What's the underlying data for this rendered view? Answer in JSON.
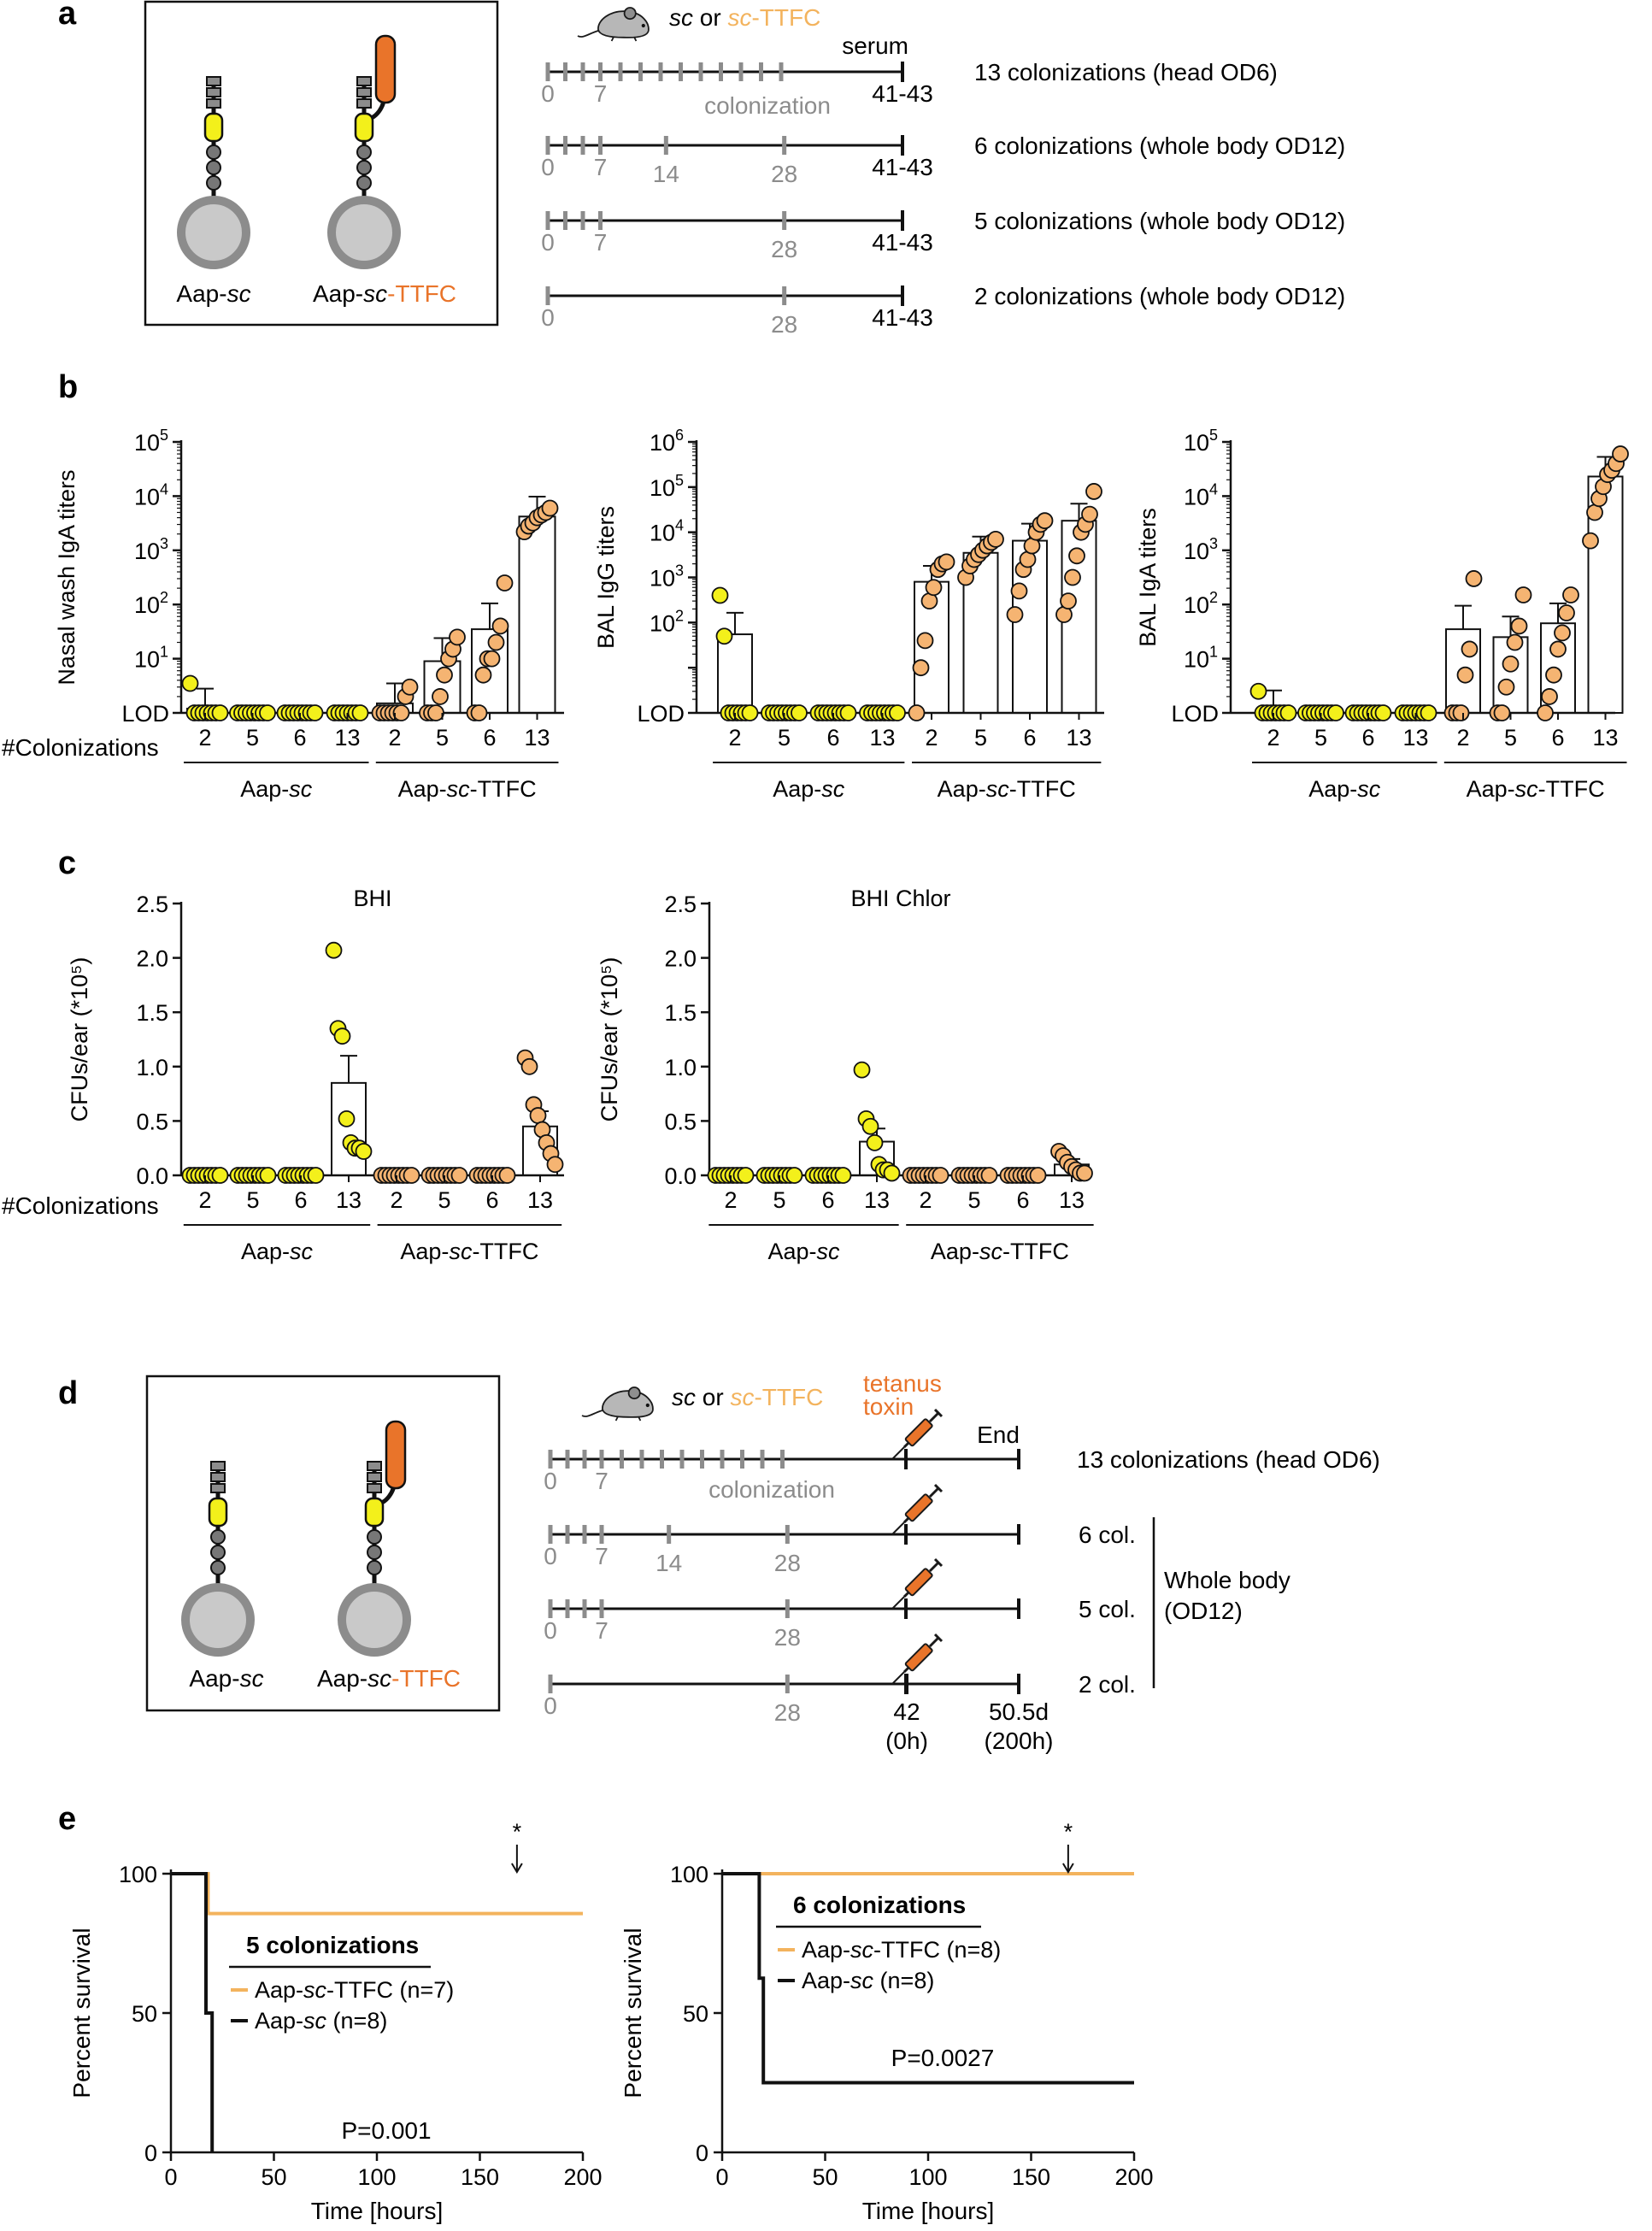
{
  "colors": {
    "orange_fill": "#f5b472",
    "orange_line": "#f3b35d",
    "orange_dark": "#e9742a",
    "yellow_fill": "#f3f01b",
    "grey_timeline": "#8c8c8c"
  },
  "panel_labels": {
    "a": "a",
    "b": "b",
    "c": "c",
    "d": "d",
    "e": "e"
  },
  "schematic": {
    "construct_left": {
      "prefix": "Aap-",
      "italic": "sc"
    },
    "construct_right": {
      "prefix": "Aap-",
      "italic": "sc",
      "suffix": "-TTFC"
    },
    "mouse_label": {
      "sc": "sc",
      "or": " or ",
      "sc2": "sc",
      "ttfc": "-TTFC"
    }
  },
  "panel_a": {
    "serum_label": "serum",
    "colonization_label": "colonization",
    "timelines": [
      {
        "label": "13 colonizations (head OD6)",
        "ticks": [
          "0",
          "7"
        ],
        "mid_ticks": [],
        "end": "41-43"
      },
      {
        "label": "6 colonizations (whole body OD12)",
        "ticks": [
          "0",
          "7"
        ],
        "mid_ticks": [
          "14",
          "28"
        ],
        "end": "41-43"
      },
      {
        "label": "5 colonizations (whole body OD12)",
        "ticks": [
          "0",
          "7"
        ],
        "mid_ticks": [
          "28"
        ],
        "end": "41-43"
      },
      {
        "label": "2 colonizations (whole body OD12)",
        "ticks": [
          "0"
        ],
        "mid_ticks": [
          "28"
        ],
        "end": "41-43"
      }
    ]
  },
  "panel_b": {
    "x_prefix": "#Colonizations",
    "lod_label": "LOD",
    "group_left": {
      "prefix": "Aap-",
      "italic": "sc",
      "suffix": ""
    },
    "group_right": {
      "prefix": "Aap-",
      "italic": "sc",
      "suffix": "-TTFC"
    },
    "categories": [
      "2",
      "5",
      "6",
      "13",
      "2",
      "5",
      "6",
      "13"
    ]
  },
  "panel_c": {
    "x_prefix": "#Colonizations",
    "ylabel": "CFUs/ear (*10⁵)",
    "ticks": [
      "0.0",
      "0.5",
      "1.0",
      "1.5",
      "2.0",
      "2.5"
    ]
  },
  "panel_d": {
    "tetanus": "tetanus",
    "toxin": "toxin",
    "end_label": "End",
    "colonization_label": "colonization",
    "timelines": [
      {
        "label": "13 colonizations (head OD6)",
        "ticks": [
          "0",
          "7"
        ],
        "mid_ticks": []
      },
      {
        "label": "6 col.",
        "ticks": [
          "0",
          "7"
        ],
        "mid_ticks": [
          "14",
          "28"
        ]
      },
      {
        "label": "5 col.",
        "ticks": [
          "0",
          "7"
        ],
        "mid_ticks": [
          "28"
        ]
      },
      {
        "label": "2 col.",
        "ticks": [
          "0"
        ],
        "mid_ticks": [
          "28"
        ]
      }
    ],
    "bottom_mid": "28",
    "challenge_day": "42",
    "challenge_hour": "(0h)",
    "end_day": "50.5d",
    "end_hour": "(200h)",
    "bracket_label_1": "Whole body",
    "bracket_label_2": "(OD12)"
  },
  "panel_e": {
    "ylabel": "Percent survival",
    "xlabel": "Time [hours]",
    "x_ticks": [
      "0",
      "50",
      "100",
      "150",
      "200"
    ],
    "y_ticks": [
      "0",
      "50",
      "100"
    ],
    "asterisk": "*",
    "plots": [
      {
        "title": "5 colonizations",
        "legend_ttfc": {
          "prefix": "Aap-",
          "italic": "sc",
          "suffix": "-TTFC (n=7)"
        },
        "legend_sc": {
          "prefix": "Aap-",
          "italic": "sc",
          "suffix": " (n=8)"
        },
        "pvalue": "P=0.001"
      },
      {
        "title": "6 colonizations",
        "legend_ttfc": {
          "prefix": "Aap-",
          "italic": "sc",
          "suffix": "-TTFC (n=8)"
        },
        "legend_sc": {
          "prefix": "Aap-",
          "italic": "sc",
          "suffix": " (n=8)"
        },
        "pvalue": "P=0.0027"
      }
    ]
  },
  "chart_data": [
    {
      "type": "bar",
      "panel": "b",
      "ylabel": "Nasal wash IgA titers",
      "yscale": "log",
      "ylim_log10": [
        0,
        5
      ],
      "y_ticks_exp": [
        "1",
        "2",
        "3",
        "4",
        "5"
      ],
      "categories": [
        "2",
        "5",
        "6",
        "13",
        "2",
        "5",
        "6",
        "13"
      ],
      "groups": [
        "Aap-sc",
        "Aap-sc",
        "Aap-sc",
        "Aap-sc",
        "Aap-sc-TTFC",
        "Aap-sc-TTFC",
        "Aap-sc-TTFC",
        "Aap-sc-TTFC"
      ],
      "means": [
        1.2,
        1,
        1,
        1,
        1.5,
        9,
        35,
        4200
      ],
      "errors": [
        1.6,
        0,
        0,
        0,
        2,
        15,
        70,
        5600
      ],
      "points": [
        [
          3.5,
          1,
          1,
          1,
          1,
          1,
          1,
          1
        ],
        [
          1,
          1,
          1,
          1,
          1,
          1,
          1,
          1
        ],
        [
          1,
          1,
          1,
          1,
          1,
          1,
          1,
          1
        ],
        [
          1,
          1,
          1,
          1,
          1,
          1,
          1
        ],
        [
          1,
          1,
          1,
          1,
          1,
          1,
          2,
          3
        ],
        [
          1,
          1,
          1,
          2,
          5,
          10,
          15,
          25
        ],
        [
          1,
          1,
          5,
          10,
          10,
          20,
          40,
          250
        ],
        [
          2200,
          2800,
          3200,
          4000,
          4500,
          5000,
          6000
        ]
      ]
    },
    {
      "type": "bar",
      "panel": "b",
      "ylabel": "BAL IgG titers",
      "yscale": "log",
      "ylim_log10": [
        0,
        6
      ],
      "y_ticks_exp": [
        "2",
        "3",
        "4",
        "5",
        "6"
      ],
      "categories": [
        "2",
        "5",
        "6",
        "13",
        "2",
        "5",
        "6",
        "13"
      ],
      "groups": [
        "Aap-sc",
        "Aap-sc",
        "Aap-sc",
        "Aap-sc",
        "Aap-sc-TTFC",
        "Aap-sc-TTFC",
        "Aap-sc-TTFC",
        "Aap-sc-TTFC"
      ],
      "means": [
        55,
        1,
        1,
        1,
        800,
        3500,
        6500,
        18000
      ],
      "errors": [
        110,
        0,
        0,
        0,
        1000,
        4500,
        9000,
        25000
      ],
      "points": [
        [
          400,
          50,
          1,
          1,
          1,
          1,
          1,
          1
        ],
        [
          1,
          1,
          1,
          1,
          1,
          1,
          1,
          1
        ],
        [
          1,
          1,
          1,
          1,
          1,
          1,
          1,
          1
        ],
        [
          1,
          1,
          1,
          1,
          1,
          1,
          1,
          1
        ],
        [
          1,
          10,
          40,
          300,
          600,
          1500,
          2000,
          2200
        ],
        [
          1000,
          1800,
          2500,
          3200,
          4000,
          5000,
          6000,
          7000
        ],
        [
          150,
          500,
          1500,
          2500,
          5000,
          10000,
          15000,
          18000
        ],
        [
          150,
          300,
          1000,
          3000,
          10000,
          15000,
          25000,
          80000
        ]
      ]
    },
    {
      "type": "bar",
      "panel": "b",
      "ylabel": "BAL IgA titers",
      "yscale": "log",
      "ylim_log10": [
        0,
        5
      ],
      "y_ticks_exp": [
        "1",
        "2",
        "3",
        "4",
        "5"
      ],
      "categories": [
        "2",
        "5",
        "6",
        "13",
        "2",
        "5",
        "6",
        "13"
      ],
      "groups": [
        "Aap-sc",
        "Aap-sc",
        "Aap-sc",
        "Aap-sc",
        "Aap-sc-TTFC",
        "Aap-sc-TTFC",
        "Aap-sc-TTFC",
        "Aap-sc-TTFC"
      ],
      "means": [
        1.1,
        1,
        1,
        1,
        35,
        25,
        45,
        23000
      ],
      "errors": [
        1.5,
        0,
        0,
        0,
        60,
        35,
        60,
        30000
      ],
      "points": [
        [
          2.5,
          1,
          1,
          1,
          1,
          1,
          1,
          1
        ],
        [
          1,
          1,
          1,
          1,
          1,
          1,
          1,
          1
        ],
        [
          1,
          1,
          1,
          1,
          1,
          1,
          1,
          1
        ],
        [
          1,
          1,
          1,
          1,
          1,
          1,
          1
        ],
        [
          1,
          1,
          1,
          5,
          15,
          300
        ],
        [
          1,
          1,
          3,
          8,
          20,
          40,
          150
        ],
        [
          1,
          2,
          5,
          15,
          30,
          70,
          150
        ],
        [
          1500,
          5000,
          9000,
          15000,
          25000,
          30000,
          40000,
          60000
        ]
      ]
    },
    {
      "type": "bar",
      "panel": "c",
      "title": "BHI",
      "ylabel": "CFUs/ear (*10⁵)",
      "ylim": [
        0,
        2.5
      ],
      "categories": [
        "2",
        "5",
        "6",
        "13",
        "2",
        "5",
        "6",
        "13"
      ],
      "groups": [
        "Aap-sc",
        "Aap-sc",
        "Aap-sc",
        "Aap-sc",
        "Aap-sc-TTFC",
        "Aap-sc-TTFC",
        "Aap-sc-TTFC",
        "Aap-sc-TTFC"
      ],
      "means": [
        0,
        0,
        0,
        0.85,
        0,
        0,
        0,
        0.45
      ],
      "errors": [
        0,
        0,
        0,
        0.25,
        0,
        0,
        0,
        0.14
      ],
      "points": [
        [
          0,
          0,
          0,
          0,
          0,
          0,
          0,
          0
        ],
        [
          0,
          0,
          0,
          0,
          0,
          0,
          0,
          0
        ],
        [
          0,
          0,
          0,
          0,
          0,
          0,
          0,
          0
        ],
        [
          2.07,
          1.35,
          1.28,
          0.52,
          0.3,
          0.25,
          0.25,
          0.22
        ],
        [
          0,
          0,
          0,
          0,
          0,
          0,
          0,
          0
        ],
        [
          0,
          0,
          0,
          0,
          0,
          0,
          0,
          0
        ],
        [
          0,
          0,
          0,
          0,
          0,
          0,
          0,
          0
        ],
        [
          1.08,
          1.0,
          0.65,
          0.55,
          0.42,
          0.3,
          0.2,
          0.1
        ]
      ]
    },
    {
      "type": "bar",
      "panel": "c",
      "title": "BHI Chlor",
      "ylabel": "CFUs/ear (*10⁵)",
      "ylim": [
        0,
        2.5
      ],
      "categories": [
        "2",
        "5",
        "6",
        "13",
        "2",
        "5",
        "6",
        "13"
      ],
      "groups": [
        "Aap-sc",
        "Aap-sc",
        "Aap-sc",
        "Aap-sc",
        "Aap-sc-TTFC",
        "Aap-sc-TTFC",
        "Aap-sc-TTFC",
        "Aap-sc-TTFC"
      ],
      "means": [
        0,
        0,
        0,
        0.31,
        0,
        0,
        0,
        0.1
      ],
      "errors": [
        0,
        0,
        0,
        0.12,
        0,
        0,
        0,
        0.05
      ],
      "points": [
        [
          0,
          0,
          0,
          0,
          0,
          0,
          0,
          0
        ],
        [
          0,
          0,
          0,
          0,
          0,
          0,
          0,
          0
        ],
        [
          0,
          0,
          0,
          0,
          0,
          0,
          0,
          0
        ],
        [
          0.97,
          0.52,
          0.45,
          0.3,
          0.1,
          0.05,
          0.05,
          0.02
        ],
        [
          0,
          0,
          0,
          0,
          0,
          0,
          0,
          0
        ],
        [
          0,
          0,
          0,
          0,
          0,
          0,
          0,
          0
        ],
        [
          0,
          0,
          0,
          0,
          0,
          0,
          0,
          0
        ],
        [
          0.22,
          0.18,
          0.12,
          0.08,
          0.05,
          0.02,
          0.02
        ]
      ]
    },
    {
      "type": "line",
      "panel": "e",
      "title": "5 colonizations",
      "xlim": [
        0,
        200
      ],
      "ylim": [
        0,
        100
      ],
      "series": [
        {
          "name": "Aap-sc-TTFC (n=7)",
          "x": [
            0,
            18,
            18,
            200
          ],
          "y": [
            100,
            100,
            85.7,
            85.7
          ]
        },
        {
          "name": "Aap-sc (n=8)",
          "x": [
            0,
            17,
            17,
            20,
            20
          ],
          "y": [
            100,
            100,
            50,
            50,
            0
          ]
        }
      ]
    },
    {
      "type": "line",
      "panel": "e",
      "title": "6 colonizations",
      "xlim": [
        0,
        200
      ],
      "ylim": [
        0,
        100
      ],
      "series": [
        {
          "name": "Aap-sc-TTFC (n=8)",
          "x": [
            0,
            200
          ],
          "y": [
            100,
            100
          ]
        },
        {
          "name": "Aap-sc (n=8)",
          "x": [
            0,
            18,
            18,
            20,
            20,
            200
          ],
          "y": [
            100,
            100,
            62.5,
            62.5,
            25,
            25
          ]
        }
      ]
    }
  ]
}
